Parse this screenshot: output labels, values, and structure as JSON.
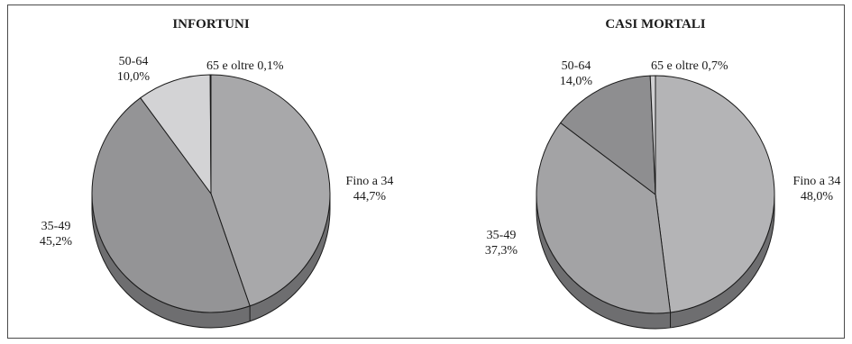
{
  "chart_data": [
    {
      "type": "pie",
      "title": "INFORTUNI",
      "slices": [
        {
          "label": "Fino a 34",
          "value_text": "44,7%",
          "value": 44.7,
          "color": "#a8a8aa"
        },
        {
          "label": "35-49",
          "value_text": "45,2%",
          "value": 45.2,
          "color": "#949496"
        },
        {
          "label": "50-64",
          "value_text": "10,0%",
          "value": 10.0,
          "color": "#d3d3d5"
        },
        {
          "label": "65 e oltre",
          "value_text": "0,1%",
          "value": 0.1,
          "color": "#b8b8ba"
        }
      ]
    },
    {
      "type": "pie",
      "title": "CASI MORTALI",
      "slices": [
        {
          "label": "Fino a 34",
          "value_text": "48,0%",
          "value": 48.0,
          "color": "#b4b4b6"
        },
        {
          "label": "35-49",
          "value_text": "37,3%",
          "value": 37.3,
          "color": "#a3a3a5"
        },
        {
          "label": "50-64",
          "value_text": "14,0%",
          "value": 14.0,
          "color": "#8e8e90"
        },
        {
          "label": "65 e oltre",
          "value_text": "0,7%",
          "value": 0.7,
          "color": "#d0d0d2"
        }
      ]
    }
  ]
}
